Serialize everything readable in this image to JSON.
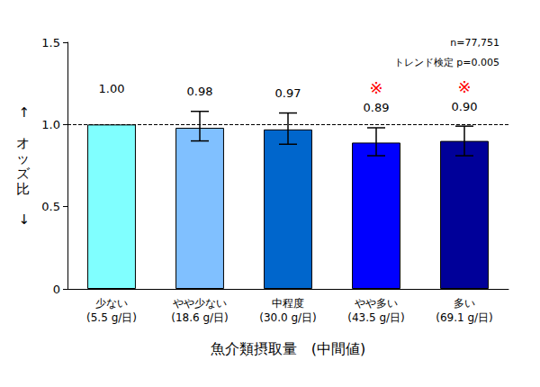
{
  "chart_data": {
    "type": "bar",
    "y_label": "↑ オッズ比 ↓",
    "x_label": "魚介類摂取量　(中間値)",
    "annotations": [
      "n=77,751",
      "トレンド検定 p=0.005"
    ],
    "categories": [
      "少ない\n(5.5 g/日)",
      "やや少ない\n(18.6 g/日)",
      "中程度\n(30.0 g/日)",
      "やや多い\n(43.5 g/日)",
      "多い\n(69.1 g/日)"
    ],
    "values": [
      1.0,
      0.98,
      0.97,
      0.89,
      0.9
    ],
    "value_labels": [
      "1.00",
      "0.98",
      "0.97",
      "0.89",
      "0.90"
    ],
    "error_low": [
      null,
      0.9,
      0.88,
      0.81,
      0.81
    ],
    "error_high": [
      null,
      1.08,
      1.07,
      0.98,
      0.99
    ],
    "significant": [
      false,
      false,
      false,
      true,
      true
    ],
    "significance_label": "※",
    "reference_line": 1,
    "colors": [
      "#80ffff",
      "#80c0ff",
      "#0066cc",
      "#0000ff",
      "#000099"
    ],
    "ylim": [
      0,
      1.5
    ],
    "yticks": [
      0,
      0.5,
      {
        "value": 1,
        "label": "1.0"
      },
      1.5
    ],
    "grid": false,
    "data_labels": true
  }
}
